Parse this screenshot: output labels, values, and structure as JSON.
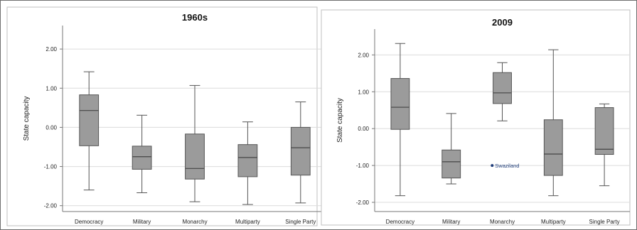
{
  "chart_data": [
    {
      "type": "boxplot",
      "title": "1960s",
      "ylabel": "State capacity",
      "categories": [
        "Democracy",
        "Military",
        "Monarchy",
        "Multiparty",
        "Single Party"
      ],
      "ylim": [
        -2.15,
        2.6
      ],
      "yticks": [
        "2.00",
        "1.00",
        "0.00",
        "-1.00",
        "-2.00"
      ],
      "ytick_values": [
        2,
        1,
        0,
        -1,
        -2
      ],
      "grid": true,
      "boxes": [
        {
          "min": -1.6,
          "q1": -0.47,
          "median": 0.43,
          "q3": 0.83,
          "max": 1.42
        },
        {
          "min": -1.67,
          "q1": -1.07,
          "median": -0.75,
          "q3": -0.48,
          "max": 0.31
        },
        {
          "min": -1.9,
          "q1": -1.32,
          "median": -1.05,
          "q3": -0.17,
          "max": 1.07
        },
        {
          "min": -1.97,
          "q1": -1.26,
          "median": -0.77,
          "q3": -0.44,
          "max": 0.14
        },
        {
          "min": -1.93,
          "q1": -1.22,
          "median": -0.52,
          "q3": 0.0,
          "max": 0.65
        }
      ],
      "outliers": []
    },
    {
      "type": "boxplot",
      "title": "2009",
      "ylabel": "State capacity",
      "categories": [
        "Democracy",
        "Military",
        "Monarchy",
        "Multiparty",
        "Single Party"
      ],
      "ylim": [
        -2.25,
        2.7
      ],
      "yticks": [
        "2.00",
        "1.00",
        "0.00",
        "-1.00",
        "-2.00"
      ],
      "ytick_values": [
        2,
        1,
        0,
        -1,
        -2
      ],
      "grid": true,
      "boxes": [
        {
          "min": -1.82,
          "q1": -0.02,
          "median": 0.58,
          "q3": 1.36,
          "max": 2.31
        },
        {
          "min": -1.5,
          "q1": -1.34,
          "median": -0.9,
          "q3": -0.58,
          "max": 0.41
        },
        {
          "min": 0.21,
          "q1": 0.68,
          "median": 0.97,
          "q3": 1.52,
          "max": 1.79
        },
        {
          "min": -1.82,
          "q1": -1.27,
          "median": -0.69,
          "q3": 0.24,
          "max": 2.14
        },
        {
          "min": -1.55,
          "q1": -0.7,
          "median": -0.56,
          "q3": 0.57,
          "max": 0.67
        }
      ],
      "outliers": [
        {
          "category": "Monarchy",
          "value": -1.0,
          "label": "Swaziland"
        }
      ]
    }
  ],
  "colors": {
    "box_fill": "#9b9b9b",
    "line": "#555555",
    "grid": "#dcdcdc",
    "frame": "#bfbfbf",
    "outlier": "#1f3d7a"
  }
}
